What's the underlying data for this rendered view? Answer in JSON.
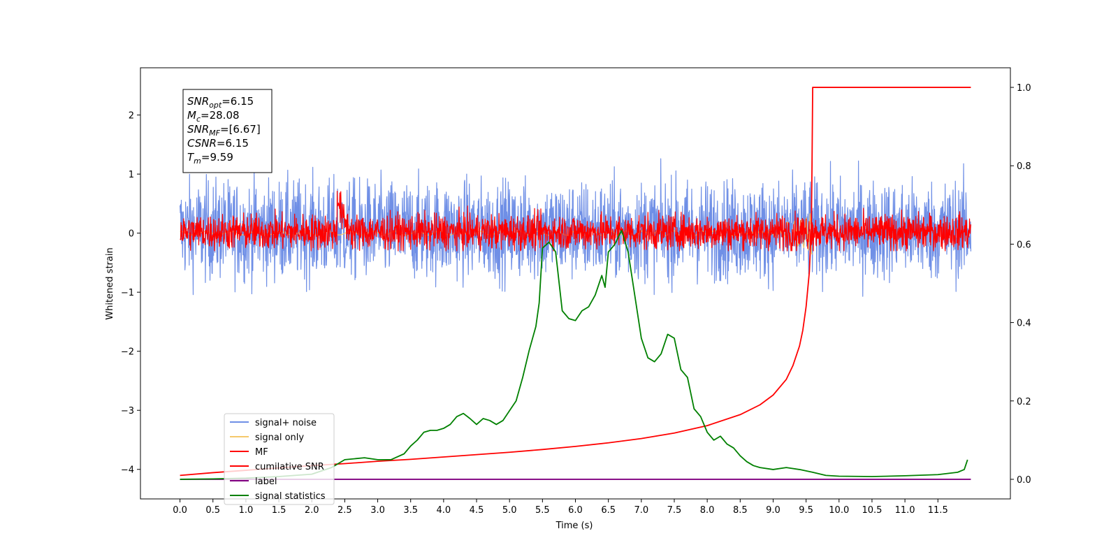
{
  "chart_data": {
    "type": "line",
    "xlabel": "Time (s)",
    "ylabel": "Whitened strain",
    "xlim": [
      -0.6,
      12.6
    ],
    "ylim": [
      -4.5,
      2.8
    ],
    "ylim_right": [
      -0.05,
      1.05
    ],
    "x_ticks": [
      "0.0",
      "0.5",
      "1.0",
      "1.5",
      "2.0",
      "2.5",
      "3.0",
      "3.5",
      "4.0",
      "4.5",
      "5.0",
      "5.5",
      "6.0",
      "6.5",
      "7.0",
      "7.5",
      "8.0",
      "8.5",
      "9.0",
      "9.5",
      "10.0",
      "10.5",
      "11.0",
      "11.5"
    ],
    "y_ticks_left": [
      "2",
      "1",
      "0",
      "−1",
      "−2",
      "−3",
      "−4"
    ],
    "y_ticks_right": [
      "1.0",
      "0.8",
      "0.6",
      "0.4",
      "0.2",
      "0.0"
    ],
    "legend_position": "lower-left",
    "annotation": [
      {
        "base": "SNR",
        "sub": "opt",
        "value": "=6.15"
      },
      {
        "base": "M",
        "sub": "c",
        "value": "=28.08"
      },
      {
        "base": "SNR",
        "sub": "MF",
        "value": "=[6.67]"
      },
      {
        "base": "CSNR",
        "sub": "",
        "value": "=6.15"
      },
      {
        "base": "T",
        "sub": "m",
        "value": "=9.59"
      }
    ],
    "series": [
      {
        "name": "signal+ noise",
        "color": "#6f8fe6",
        "axis": "left",
        "kind": "noise",
        "x_range": [
          0,
          12
        ],
        "amplitude_range": [
          -1.25,
          1.3
        ]
      },
      {
        "name": "signal only",
        "color": "#f5c96b",
        "axis": "left",
        "kind": "chirp",
        "x_range": [
          0,
          9.6
        ],
        "amplitude_range": [
          -0.3,
          0.5
        ]
      },
      {
        "name": "MF",
        "color": "#ff0000",
        "axis": "left",
        "kind": "noise",
        "x_range": [
          0,
          12
        ],
        "amplitude_range": [
          -0.3,
          1.0
        ]
      },
      {
        "name": "cumilative SNR",
        "color": "#ff0000",
        "axis": "right",
        "x": [
          0,
          0.5,
          1,
          1.5,
          2,
          2.5,
          3,
          3.5,
          4,
          4.5,
          5,
          5.5,
          6,
          6.5,
          7,
          7.5,
          8,
          8.5,
          8.8,
          9.0,
          9.2,
          9.3,
          9.4,
          9.45,
          9.5,
          9.55,
          9.58,
          9.59,
          9.6,
          12
        ],
        "values": [
          0.01,
          0.017,
          0.023,
          0.029,
          0.035,
          0.04,
          0.046,
          0.051,
          0.057,
          0.063,
          0.069,
          0.076,
          0.084,
          0.093,
          0.104,
          0.118,
          0.137,
          0.165,
          0.19,
          0.215,
          0.255,
          0.29,
          0.34,
          0.38,
          0.44,
          0.53,
          0.65,
          0.8,
          1.0,
          1.0
        ]
      },
      {
        "name": "label",
        "color": "#800080",
        "axis": "right",
        "x": [
          0,
          12
        ],
        "values": [
          0.0,
          0.0
        ]
      },
      {
        "name": "signal statistics",
        "color": "#008000",
        "axis": "right",
        "x": [
          0,
          0.5,
          1.0,
          1.5,
          2.0,
          2.3,
          2.5,
          2.8,
          3.0,
          3.2,
          3.4,
          3.5,
          3.6,
          3.7,
          3.8,
          3.9,
          4.0,
          4.1,
          4.2,
          4.3,
          4.4,
          4.5,
          4.6,
          4.7,
          4.8,
          4.9,
          5.0,
          5.1,
          5.2,
          5.3,
          5.4,
          5.45,
          5.5,
          5.6,
          5.7,
          5.8,
          5.9,
          6.0,
          6.1,
          6.2,
          6.3,
          6.4,
          6.45,
          6.5,
          6.6,
          6.7,
          6.8,
          6.9,
          7.0,
          7.1,
          7.2,
          7.3,
          7.4,
          7.5,
          7.6,
          7.7,
          7.8,
          7.9,
          8.0,
          8.1,
          8.2,
          8.3,
          8.4,
          8.5,
          8.6,
          8.7,
          8.8,
          9.0,
          9.2,
          9.4,
          9.6,
          9.8,
          10.0,
          10.5,
          11.0,
          11.5,
          11.8,
          11.9,
          11.95
        ],
        "values": [
          0.0,
          0.001,
          0.003,
          0.007,
          0.013,
          0.03,
          0.05,
          0.055,
          0.05,
          0.05,
          0.065,
          0.085,
          0.1,
          0.12,
          0.125,
          0.125,
          0.13,
          0.14,
          0.16,
          0.168,
          0.155,
          0.14,
          0.155,
          0.15,
          0.14,
          0.15,
          0.175,
          0.2,
          0.26,
          0.33,
          0.39,
          0.45,
          0.59,
          0.605,
          0.58,
          0.43,
          0.41,
          0.405,
          0.43,
          0.44,
          0.47,
          0.52,
          0.49,
          0.58,
          0.6,
          0.635,
          0.58,
          0.47,
          0.36,
          0.31,
          0.3,
          0.32,
          0.37,
          0.36,
          0.28,
          0.26,
          0.18,
          0.16,
          0.12,
          0.1,
          0.11,
          0.09,
          0.08,
          0.06,
          0.045,
          0.035,
          0.03,
          0.025,
          0.03,
          0.025,
          0.018,
          0.01,
          0.008,
          0.007,
          0.009,
          0.012,
          0.018,
          0.025,
          0.05
        ]
      }
    ]
  }
}
